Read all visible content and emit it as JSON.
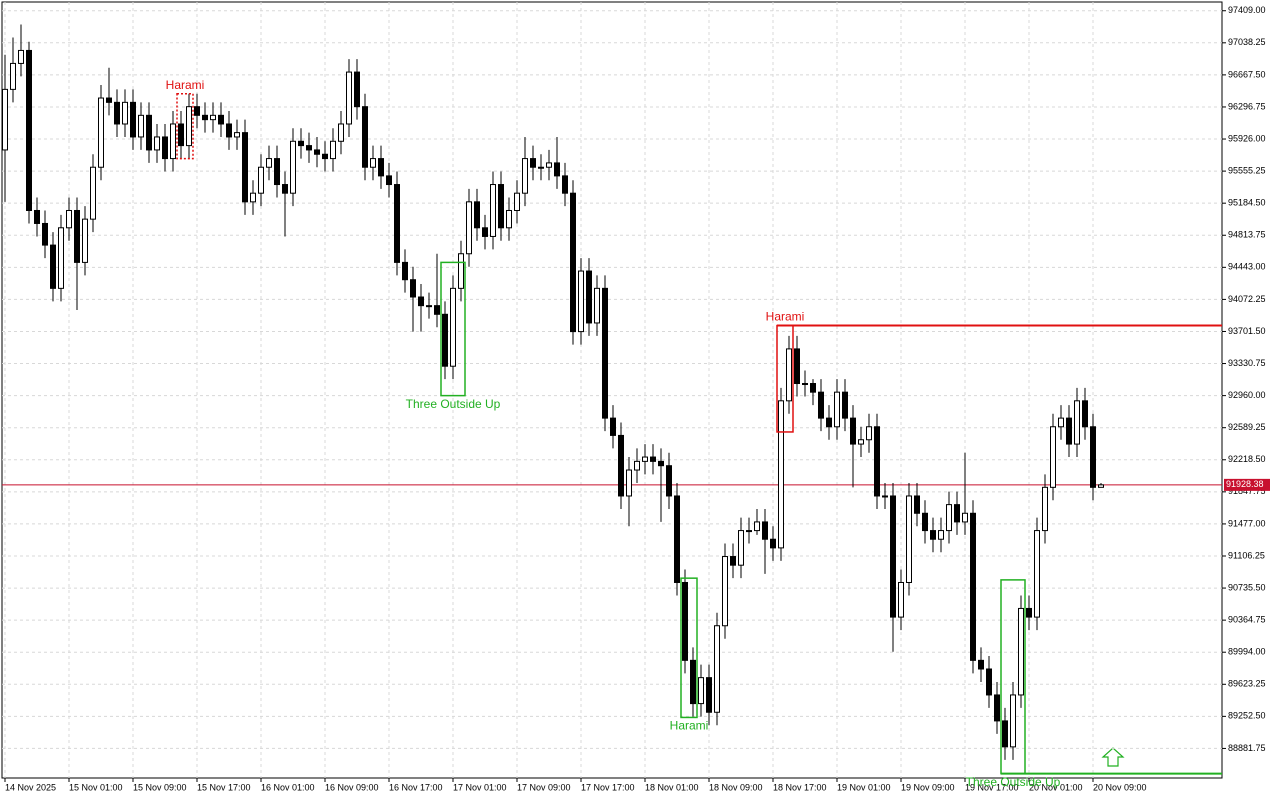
{
  "chart_data": {
    "type": "candlestick",
    "categories": [
      "14 Nov 2025",
      null,
      null,
      null,
      null,
      null,
      null,
      null,
      "15 Nov 01:00",
      null,
      null,
      null,
      null,
      null,
      null,
      null,
      "15 Nov 09:00",
      null,
      null,
      null,
      null,
      null,
      null,
      null,
      "15 Nov 17:00",
      null,
      null,
      null,
      null,
      null,
      null,
      null,
      "16 Nov 01:00",
      null,
      null,
      null,
      null,
      null,
      null,
      null,
      "16 Nov 09:00",
      null,
      null,
      null,
      null,
      null,
      null,
      null,
      "16 Nov 17:00",
      null,
      null,
      null,
      null,
      null,
      null,
      null,
      "17 Nov 01:00",
      null,
      null,
      null,
      null,
      null,
      null,
      null,
      "17 Nov 09:00",
      null,
      null,
      null,
      null,
      null,
      null,
      null,
      "17 Nov 17:00",
      null,
      null,
      null,
      null,
      null,
      null,
      null,
      "18 Nov 01:00",
      null,
      null,
      null,
      null,
      null,
      null,
      null,
      "18 Nov 09:00",
      null,
      null,
      null,
      null,
      null,
      null,
      null,
      "18 Nov 17:00",
      null,
      null,
      null,
      null,
      null,
      null,
      null,
      "19 Nov 01:00",
      null,
      null,
      null,
      null,
      null,
      null,
      null,
      "19 Nov 09:00",
      null,
      null,
      null,
      null,
      null,
      null,
      null,
      "19 Nov 17:00",
      null,
      null,
      null,
      null,
      null,
      null,
      null,
      "20 Nov 01:00",
      null,
      null,
      null,
      null,
      null,
      null,
      null,
      "20 Nov 09:00",
      null
    ],
    "open": [
      95800,
      96500,
      96800,
      96950,
      95100,
      94950,
      94700,
      94200,
      94900,
      95100,
      94500,
      95000,
      95600,
      96400,
      96350,
      96100,
      96350,
      95950,
      96200,
      95800,
      95950,
      95700,
      96100,
      95850,
      96300,
      96200,
      96150,
      96200,
      96100,
      95950,
      96000,
      95200,
      95300,
      95600,
      95700,
      95400,
      95300,
      95900,
      95850,
      95800,
      95750,
      95700,
      95900,
      96100,
      96700,
      96300,
      95600,
      95700,
      95500,
      95400,
      94500,
      94300,
      94100,
      94000,
      94000,
      93900,
      93300,
      94200,
      94600,
      95200,
      94900,
      94800,
      95400,
      94900,
      95100,
      95300,
      95700,
      95600,
      95600,
      95650,
      95500,
      95300,
      93700,
      94400,
      93800,
      94200,
      92700,
      92500,
      91800,
      92100,
      92200,
      92250,
      92200,
      92150,
      91800,
      90800,
      89900,
      89400,
      89700,
      89300,
      90300,
      91100,
      91000,
      91400,
      91400,
      91500,
      91300,
      91200,
      92900,
      93500,
      93100,
      93100,
      93000,
      92700,
      92600,
      93000,
      92700,
      92400,
      92450,
      92600,
      91800,
      91800,
      90400,
      90800,
      91800,
      91600,
      91400,
      91300,
      91400,
      91700,
      91500,
      91600,
      89900,
      89800,
      89500,
      89200,
      88900,
      89500,
      90500,
      90400,
      91400,
      91900,
      92600,
      92700,
      92400,
      92900,
      92600,
      91900
    ],
    "high": [
      96900,
      97100,
      97250,
      97050,
      95250,
      95100,
      94850,
      95050,
      95250,
      95250,
      95150,
      95750,
      96550,
      96750,
      96500,
      96500,
      96500,
      96350,
      96350,
      96100,
      96100,
      96250,
      96250,
      96450,
      96450,
      96350,
      96350,
      96350,
      96250,
      96150,
      96150,
      95450,
      95750,
      95850,
      95850,
      95550,
      96050,
      96050,
      96000,
      95950,
      95900,
      96050,
      96250,
      96850,
      96850,
      96450,
      95850,
      95850,
      95650,
      95550,
      94650,
      94450,
      94250,
      94150,
      94600,
      94050,
      94350,
      94750,
      95350,
      95350,
      95050,
      95550,
      95550,
      95250,
      95450,
      95950,
      95850,
      95750,
      95800,
      95950,
      95650,
      95450,
      94550,
      94550,
      94350,
      94350,
      92850,
      92650,
      92250,
      92350,
      92400,
      92400,
      92350,
      92300,
      91950,
      90950,
      90050,
      89850,
      89850,
      90450,
      91250,
      91250,
      91550,
      91550,
      91650,
      91650,
      91450,
      93050,
      93650,
      93650,
      93250,
      93150,
      93150,
      92850,
      93150,
      93150,
      92850,
      92600,
      92750,
      92750,
      91950,
      91950,
      90950,
      91950,
      91950,
      91750,
      91550,
      91550,
      91850,
      91850,
      92300,
      91750,
      90050,
      89950,
      89650,
      89350,
      89650,
      90650,
      90650,
      91550,
      92050,
      92750,
      92850,
      92850,
      93050,
      93050,
      92750,
      91950
    ],
    "low": [
      95200,
      96350,
      96650,
      94950,
      94800,
      94550,
      94050,
      94050,
      94750,
      93950,
      94350,
      94850,
      95450,
      96200,
      95950,
      95950,
      95800,
      95800,
      95650,
      95650,
      95550,
      95550,
      95700,
      95700,
      96050,
      96000,
      96000,
      95950,
      95800,
      95800,
      95050,
      95050,
      95150,
      95450,
      95250,
      94800,
      95150,
      95700,
      95650,
      95600,
      95550,
      95550,
      95750,
      95950,
      96150,
      95450,
      95450,
      95350,
      95250,
      94350,
      94150,
      93700,
      93700,
      93850,
      93750,
      93150,
      93150,
      94050,
      94450,
      94750,
      94650,
      94650,
      94750,
      94750,
      94950,
      95150,
      95450,
      95450,
      95450,
      95350,
      95150,
      93550,
      93550,
      93650,
      93650,
      92550,
      92350,
      91650,
      91450,
      91950,
      92050,
      92050,
      91500,
      91650,
      90650,
      89750,
      89250,
      89250,
      89150,
      89150,
      90150,
      90850,
      90850,
      91250,
      91350,
      90900,
      91050,
      91050,
      92750,
      92950,
      92950,
      92850,
      92550,
      92450,
      92450,
      92550,
      91900,
      92250,
      92300,
      91650,
      91650,
      90000,
      90250,
      90650,
      91450,
      91250,
      91150,
      91150,
      91250,
      91350,
      91350,
      89750,
      89650,
      89350,
      89050,
      88750,
      88750,
      89350,
      90250,
      90250,
      91250,
      91750,
      92450,
      92250,
      92250,
      92450,
      91750,
      91900
    ],
    "close": [
      96500,
      96800,
      96950,
      95100,
      94950,
      94700,
      94200,
      94900,
      95100,
      94500,
      95000,
      95600,
      96400,
      96350,
      96100,
      96350,
      95950,
      96200,
      95800,
      95950,
      95700,
      96100,
      95850,
      96300,
      96200,
      96150,
      96200,
      96100,
      95950,
      96000,
      95200,
      95300,
      95600,
      95700,
      95400,
      95300,
      95900,
      95850,
      95800,
      95750,
      95700,
      95900,
      96100,
      96700,
      96300,
      95600,
      95700,
      95500,
      95400,
      94500,
      94300,
      94100,
      94000,
      94000,
      93900,
      93300,
      94200,
      94600,
      95200,
      94900,
      94800,
      95400,
      94900,
      95100,
      95300,
      95700,
      95600,
      95600,
      95650,
      95500,
      95300,
      93700,
      94400,
      93800,
      94200,
      92700,
      92500,
      91800,
      92100,
      92200,
      92250,
      92200,
      92150,
      91800,
      90800,
      89900,
      89400,
      89700,
      89300,
      90300,
      91100,
      91000,
      91400,
      91400,
      91500,
      91300,
      91200,
      92900,
      93500,
      93100,
      93100,
      93000,
      92700,
      92600,
      93000,
      92700,
      92400,
      92450,
      92600,
      91800,
      91800,
      90400,
      90800,
      91800,
      91600,
      91400,
      91300,
      91400,
      91700,
      91500,
      91600,
      89900,
      89800,
      89500,
      89200,
      88900,
      89500,
      90500,
      90400,
      91400,
      91900,
      92600,
      92700,
      92400,
      92900,
      92600,
      91900,
      91928.38
    ],
    "ylim": [
      88540,
      97510
    ],
    "yticks": [
      {
        "value": 97409,
        "label": "97409.00"
      },
      97038.25,
      {
        "value": 96667.5,
        "label": "96667.50"
      },
      96296.75,
      {
        "value": 95926,
        "label": "95926.00"
      },
      95555.25,
      {
        "value": 95184.5,
        "label": "95184.50"
      },
      94813.75,
      {
        "value": 94443,
        "label": "94443.00"
      },
      94072.25,
      {
        "value": 93701.5,
        "label": "93701.50"
      },
      93330.75,
      {
        "value": 92960,
        "label": "92960.00"
      },
      92589.25,
      {
        "value": 92218.5,
        "label": "92218.50"
      },
      91847.75,
      {
        "value": 91477,
        "label": "91477.00"
      },
      91106.25,
      {
        "value": 90735.5,
        "label": "90735.50"
      },
      90364.75,
      {
        "value": 89994,
        "label": "89994.00"
      },
      89623.25,
      {
        "value": 89252.5,
        "label": "89252.50"
      },
      88881.75
    ],
    "grid": true,
    "up_color": "#ffffff",
    "down_color": "#000000",
    "current_price": 91928.38,
    "current_price_color": "#c8102e",
    "patterns": [
      {
        "label": "Harami",
        "color": "#e01010",
        "first": 22,
        "last": 23,
        "top": 96450,
        "bottom": 95700,
        "label_position": "above"
      },
      {
        "label": "Three Outside Up",
        "color": "#22b022",
        "first": 55,
        "last": 57,
        "top": 94500,
        "bottom": 92960,
        "label_position": "below"
      },
      {
        "label": "Harami",
        "color": "#22b022",
        "first": 85,
        "last": 86,
        "top": 90850,
        "bottom": 89240,
        "label_position": "below"
      },
      {
        "label": "Harami",
        "color": "#e01010",
        "first": 97,
        "last": 98,
        "top": 93770,
        "bottom": 92540,
        "label_position": "above",
        "level_line": "top"
      },
      {
        "label": "Three Outside Up",
        "color": "#22b022",
        "first": 125,
        "last": 127,
        "top": 90830,
        "bottom": 88590,
        "label_position": "below",
        "level_line": "bottom"
      }
    ]
  }
}
